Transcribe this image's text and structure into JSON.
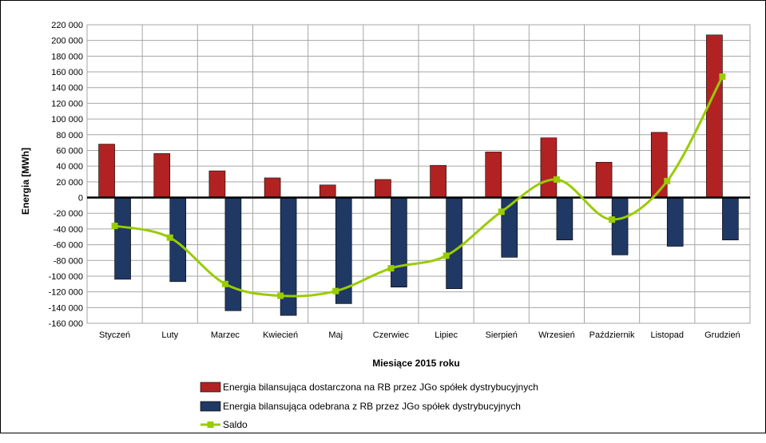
{
  "chart_data": {
    "type": "bar",
    "categories": [
      "Styczeń",
      "Luty",
      "Marzec",
      "Kwiecień",
      "Maj",
      "Czerwiec",
      "Lipiec",
      "Sierpień",
      "Wrzesień",
      "Październik",
      "Listopad",
      "Grudzień"
    ],
    "series": [
      {
        "name": "Energia bilansująca dostarczona na RB przez JGo spółek dystrybucyjnych",
        "type": "bar",
        "color": "#b22222",
        "values": [
          68000,
          56000,
          34000,
          25000,
          16000,
          23000,
          41000,
          58000,
          76000,
          45000,
          83000,
          207000
        ]
      },
      {
        "name": "Energia bilansująca odebrana z RB przez JGo spółek dystrybucyjnych",
        "type": "bar",
        "color": "#1f3864",
        "values": [
          -104000,
          -107000,
          -144000,
          -150000,
          -135000,
          -114000,
          -116000,
          -76000,
          -54000,
          -73000,
          -62000,
          -54000
        ]
      },
      {
        "name": "Saldo",
        "type": "line",
        "color": "#99cc00",
        "values": [
          -36000,
          -51000,
          -110000,
          -125000,
          -119000,
          -90000,
          -74000,
          -18000,
          23000,
          -28000,
          21000,
          154000
        ]
      }
    ],
    "ylim": [
      -160000,
      220000
    ],
    "yticks": [
      "220 000",
      "200 000",
      "180 000",
      "160 000",
      "140 000",
      "120 000",
      "100 000",
      "80 000",
      "60 000",
      "40 000",
      "20 000",
      "0",
      "-20 000",
      "-40 000",
      "-60 000",
      "-80 000",
      "-100 000",
      "-120 000",
      "-140 000",
      "-160 000"
    ],
    "xlabel": "Miesiące 2015  roku",
    "ylabel": "Energia [MWh]",
    "grid": true,
    "legend_position": "bottom",
    "colors": {
      "plot_background": "#ffffff",
      "grid": "#a6a6a6",
      "axis": "#000000"
    }
  }
}
